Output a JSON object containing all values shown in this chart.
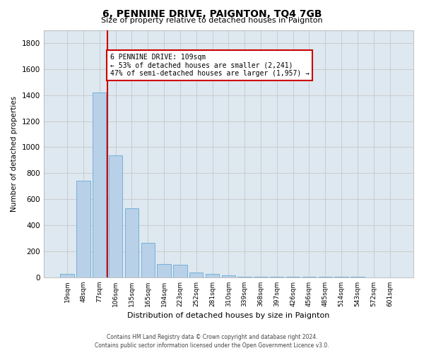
{
  "title": "6, PENNINE DRIVE, PAIGNTON, TQ4 7GB",
  "subtitle": "Size of property relative to detached houses in Paignton",
  "xlabel": "Distribution of detached houses by size in Paignton",
  "ylabel": "Number of detached properties",
  "bar_values": [
    25,
    740,
    1420,
    940,
    530,
    265,
    105,
    95,
    40,
    28,
    15,
    5,
    5,
    5,
    5,
    3,
    3,
    3,
    3,
    0,
    0
  ],
  "bin_labels": [
    "19sqm",
    "48sqm",
    "77sqm",
    "106sqm",
    "135sqm",
    "165sqm",
    "194sqm",
    "223sqm",
    "252sqm",
    "281sqm",
    "310sqm",
    "339sqm",
    "368sqm",
    "397sqm",
    "426sqm",
    "456sqm",
    "485sqm",
    "514sqm",
    "543sqm",
    "572sqm",
    "601sqm"
  ],
  "bar_color": "#b8d0e8",
  "bar_edge_color": "#6aaad4",
  "red_line_bin_index": 3,
  "annotation_line1": "6 PENNINE DRIVE: 109sqm",
  "annotation_line2": "← 53% of detached houses are smaller (2,241)",
  "annotation_line3": "47% of semi-detached houses are larger (1,957) →",
  "annotation_box_facecolor": "#ffffff",
  "annotation_box_edgecolor": "#cc0000",
  "ylim": [
    0,
    1900
  ],
  "yticks": [
    0,
    200,
    400,
    600,
    800,
    1000,
    1200,
    1400,
    1600,
    1800
  ],
  "grid_color": "#cccccc",
  "bg_color": "#dde8f0",
  "footer1": "Contains HM Land Registry data © Crown copyright and database right 2024.",
  "footer2": "Contains public sector information licensed under the Open Government Licence v3.0."
}
